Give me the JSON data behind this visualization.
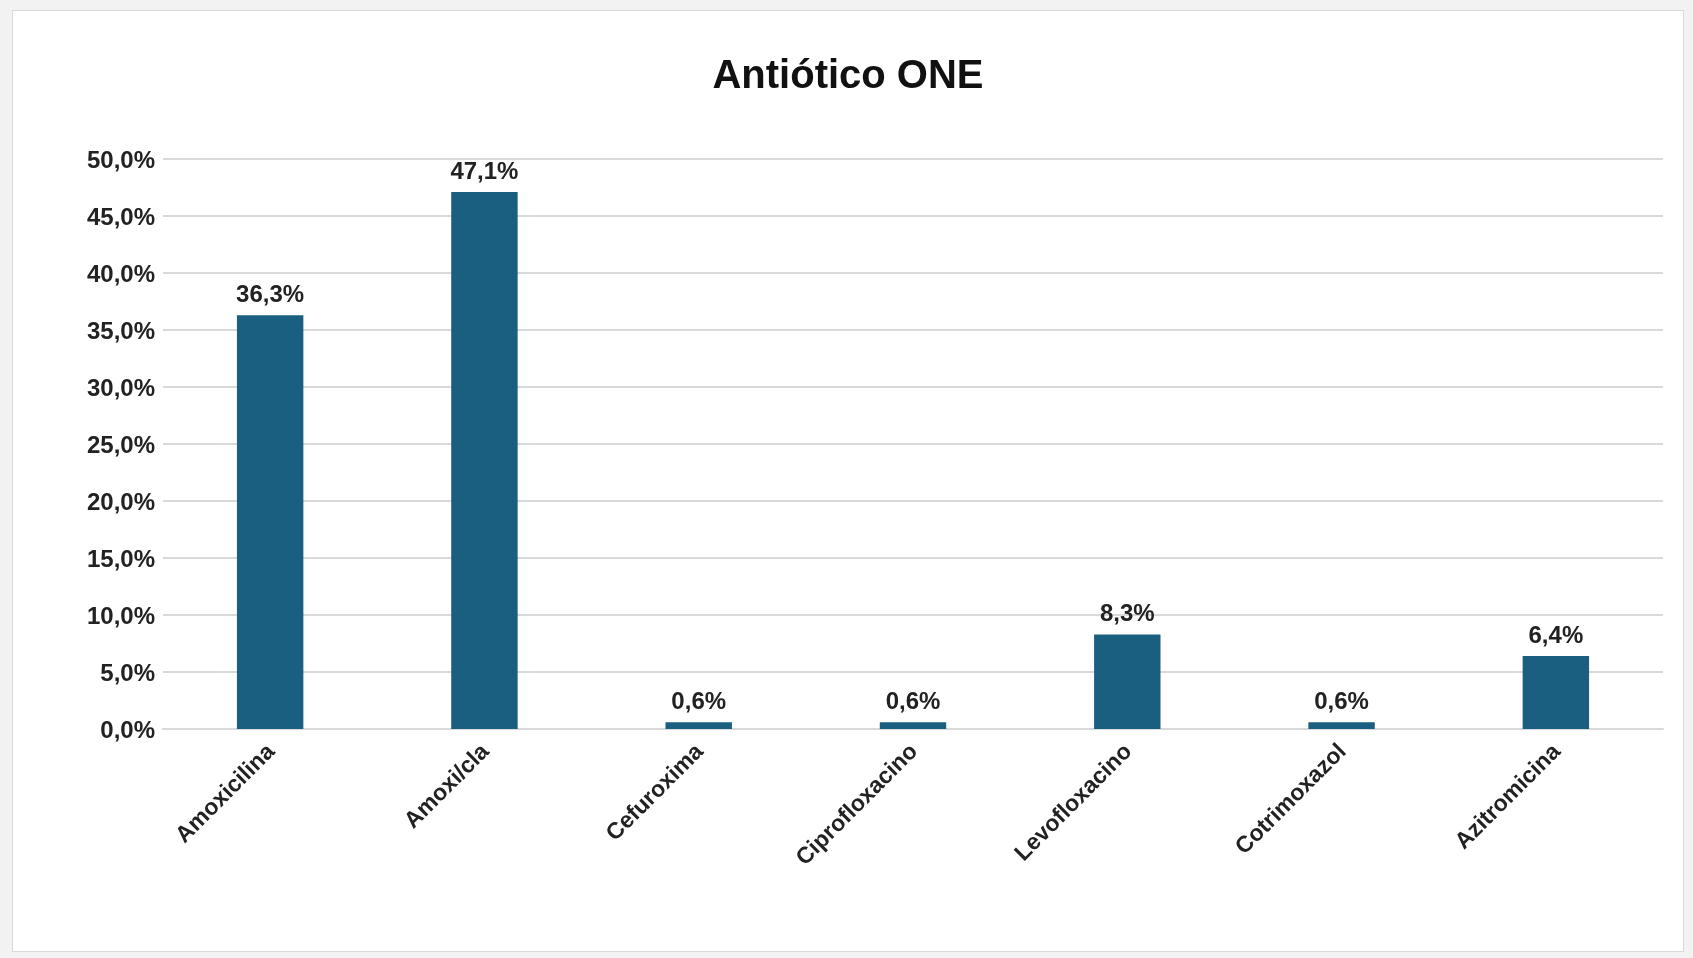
{
  "chart_data": {
    "type": "bar",
    "title": "Antiótico ONE",
    "categories": [
      "Amoxicilina",
      "Amoxi/cla",
      "Cefuroxima",
      "Ciprofloxacino",
      "Levofloxacino",
      "Cotrimoxazol",
      "Azitromicina"
    ],
    "values": [
      36.3,
      47.1,
      0.6,
      0.6,
      8.3,
      0.6,
      6.4
    ],
    "value_labels": [
      "36,3%",
      "47,1%",
      "0,6%",
      "0,6%",
      "8,3%",
      "0,6%",
      "6,4%"
    ],
    "color": "#1a5e80",
    "ylim": [
      0,
      50
    ],
    "yticks": [
      {
        "value": 0,
        "label": "0,0%"
      },
      {
        "value": 5,
        "label": "5,0%"
      },
      {
        "value": 10,
        "label": "10,0%"
      },
      {
        "value": 15,
        "label": "15,0%"
      },
      {
        "value": 20,
        "label": "20,0%"
      },
      {
        "value": 25,
        "label": "25,0%"
      },
      {
        "value": 30,
        "label": "30,0%"
      },
      {
        "value": 35,
        "label": "35,0%"
      },
      {
        "value": 40,
        "label": "40,0%"
      },
      {
        "value": 45,
        "label": "45,0%"
      },
      {
        "value": 50,
        "label": "50,0%"
      }
    ],
    "grid": true
  }
}
